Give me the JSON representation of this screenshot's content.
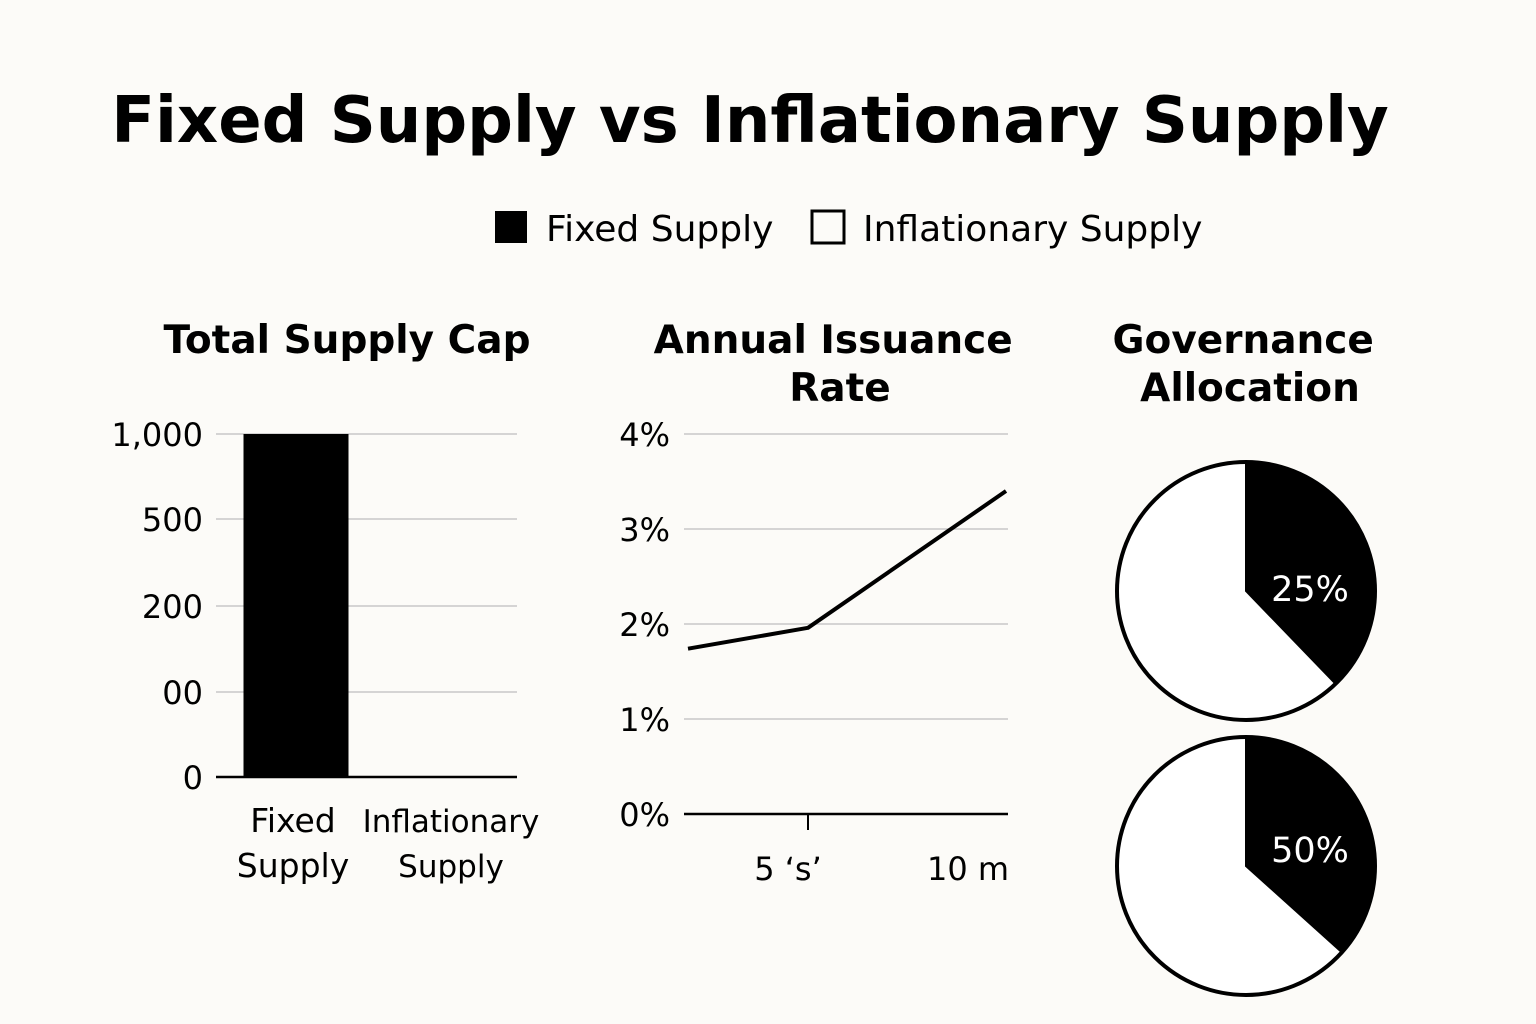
{
  "title": "Fixed Supply vs Inflationary Supply",
  "legend": [
    {
      "label": "Fixed Supply",
      "swatch": "filled"
    },
    {
      "label": "Inflationary Supply",
      "swatch": "outline"
    }
  ],
  "colors": {
    "primary": "#000000",
    "background": "#fcfbf8",
    "grid": "#c8c8c8"
  },
  "chart_data": [
    {
      "type": "bar",
      "title": "Total Supply Cap",
      "categories": [
        [
          "Fixed",
          "Supply"
        ],
        [
          "Inflationary",
          "Supply"
        ]
      ],
      "values": [
        1000,
        0
      ],
      "y_tick_labels": [
        "0",
        "00",
        "200",
        "500",
        "1,000"
      ],
      "grid": true
    },
    {
      "type": "line",
      "title": [
        "Annual Issuance",
        "Rate"
      ],
      "x_tick_labels": [
        "5 ‘s’",
        "10 m"
      ],
      "y_tick_labels": [
        "0%",
        "1%",
        "2%",
        "3%",
        "4%"
      ],
      "ylim": [
        0,
        4
      ],
      "series": [
        {
          "points": [
            [
              0,
              1.74
            ],
            [
              1,
              1.96
            ],
            [
              2,
              3.4
            ]
          ]
        }
      ],
      "grid": true
    },
    {
      "type": "pie",
      "title": [
        "Governance",
        "Allocation"
      ],
      "pies": [
        {
          "label": "25%",
          "value": 25
        },
        {
          "label": "50%",
          "value": 50
        }
      ]
    }
  ]
}
